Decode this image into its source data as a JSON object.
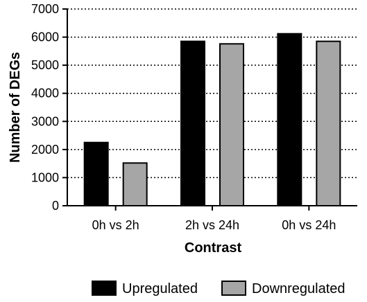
{
  "chart_data": {
    "type": "bar",
    "categories": [
      "0h vs 2h",
      "2h vs 24h",
      "0h vs 24h"
    ],
    "series": [
      {
        "name": "Upregulated",
        "values": [
          2250,
          5850,
          6120
        ],
        "color": "#000000"
      },
      {
        "name": "Downregulated",
        "values": [
          1520,
          5760,
          5850
        ],
        "color": "#a6a6a6"
      }
    ],
    "yticks": [
      "0",
      "1000",
      "2000",
      "3000",
      "4000",
      "5000",
      "6000",
      "7000"
    ],
    "ylim": [
      0,
      7000
    ],
    "xlabel": "Contrast",
    "ylabel": "Number of DEGs",
    "grid": "horizontal dotted",
    "legend_position": "bottom"
  }
}
